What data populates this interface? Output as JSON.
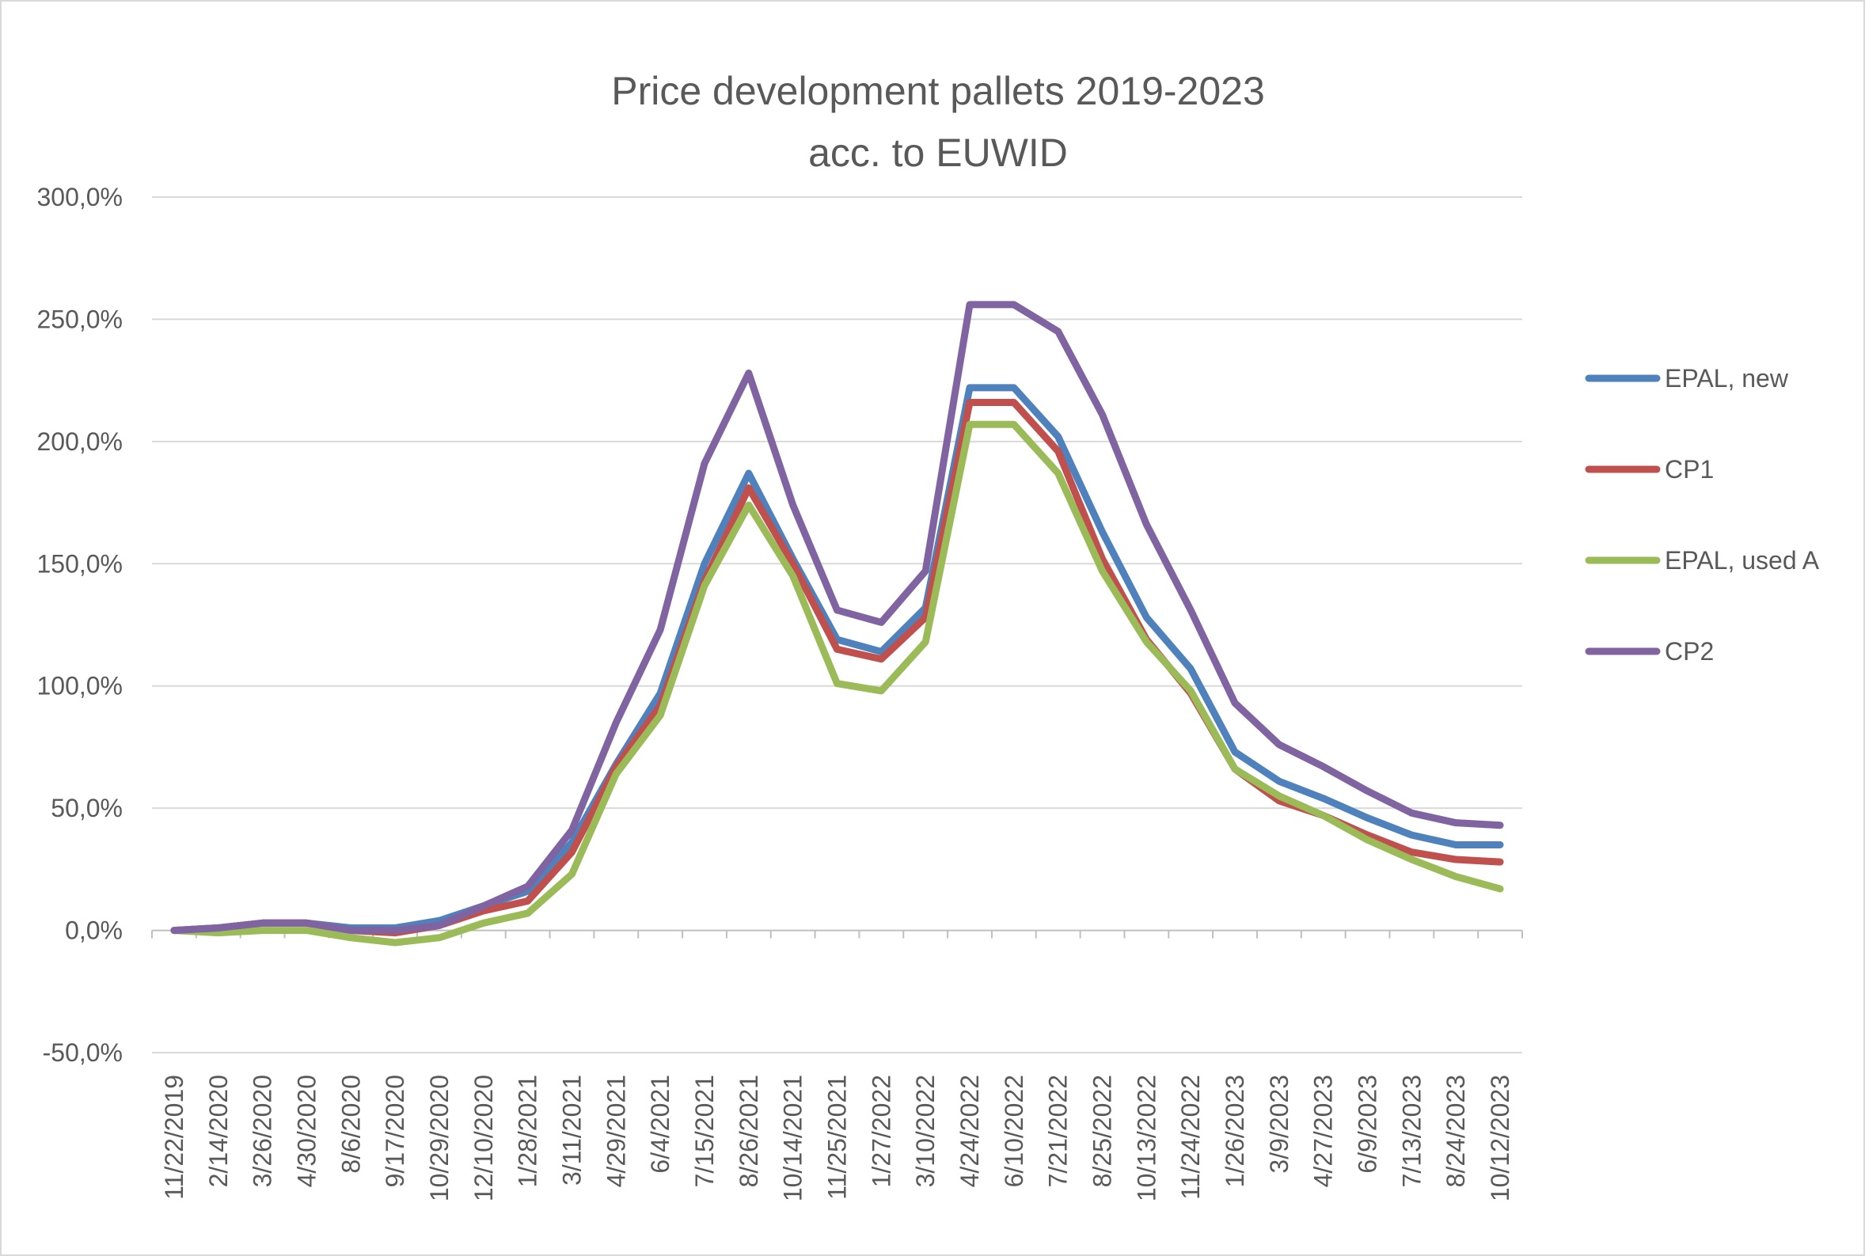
{
  "chart_data": {
    "type": "line",
    "title": [
      "Price development pallets 2019-2023",
      "acc. to EUWID"
    ],
    "xlabel": "",
    "ylabel": "",
    "ylim": [
      -50,
      300
    ],
    "yticks": [
      -50,
      0,
      50,
      100,
      150,
      200,
      250,
      300
    ],
    "ytick_labels": [
      "-50,0%",
      "0,0%",
      "50,0%",
      "100,0%",
      "150,0%",
      "200,0%",
      "250,0%",
      "300,0%"
    ],
    "grid": true,
    "legend_position": "right",
    "categories": [
      "11/22/2019",
      "2/14/2020",
      "3/26/2020",
      "4/30/2020",
      "8/6/2020",
      "9/17/2020",
      "10/29/2020",
      "12/10/2020",
      "1/28/2021",
      "3/11/2021",
      "4/29/2021",
      "6/4/2021",
      "7/15/2021",
      "8/26/2021",
      "10/14/2021",
      "11/25/2021",
      "1/27/2022",
      "3/10/2022",
      "4/24/2022",
      "6/10/2022",
      "7/21/2022",
      "8/25/2022",
      "10/13/2022",
      "11/24/2022",
      "1/26/2023",
      "3/9/2023",
      "4/27/2023",
      "6/9/2023",
      "7/13/2023",
      "8/24/2023",
      "10/12/2023"
    ],
    "series": [
      {
        "name": "EPAL, new",
        "color": "#4f81bd",
        "values": [
          0,
          1,
          3,
          3,
          1,
          1,
          4,
          10,
          16,
          36,
          68,
          97,
          150,
          187,
          152,
          119,
          114,
          132,
          222,
          222,
          202,
          163,
          128,
          107,
          73,
          61,
          54,
          46,
          39,
          35,
          35
        ]
      },
      {
        "name": "CP1",
        "color": "#c0504d",
        "values": [
          0,
          1,
          3,
          3,
          0,
          -1,
          2,
          8,
          12,
          32,
          67,
          92,
          143,
          181,
          150,
          115,
          111,
          128,
          216,
          216,
          196,
          152,
          119,
          97,
          66,
          53,
          47,
          39,
          32,
          29,
          28
        ]
      },
      {
        "name": "EPAL, used A",
        "color": "#9bbb59",
        "values": [
          0,
          -1,
          0,
          0,
          -3,
          -5,
          -3,
          3,
          7,
          23,
          64,
          88,
          141,
          174,
          145,
          101,
          98,
          118,
          207,
          207,
          187,
          147,
          118,
          98,
          66,
          55,
          47,
          37,
          29,
          22,
          17
        ]
      },
      {
        "name": "CP2",
        "color": "#8064a2",
        "values": [
          0,
          1,
          3,
          3,
          0,
          0,
          2,
          10,
          18,
          41,
          85,
          123,
          191,
          228,
          174,
          131,
          126,
          147,
          256,
          256,
          245,
          211,
          166,
          131,
          93,
          76,
          67,
          57,
          48,
          44,
          43
        ]
      }
    ]
  }
}
